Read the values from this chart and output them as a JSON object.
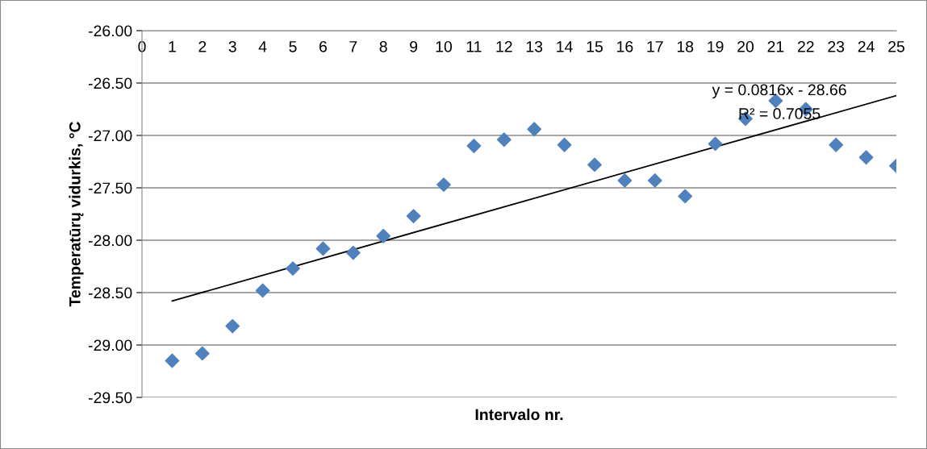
{
  "chart_data": {
    "type": "scatter",
    "xlabel": "Intervalo nr.",
    "ylabel": "Temperatūrų vidurkis, °C",
    "xlim": [
      0,
      25
    ],
    "xticks": [
      0,
      1,
      2,
      3,
      4,
      5,
      6,
      7,
      8,
      9,
      10,
      11,
      12,
      13,
      14,
      15,
      16,
      17,
      18,
      19,
      20,
      21,
      22,
      23,
      24,
      25
    ],
    "ylim": [
      -29.5,
      -26
    ],
    "yticks": [
      {
        "value": -29.5,
        "label": "-29.50"
      },
      {
        "value": -29,
        "label": "-29.00"
      },
      {
        "value": -28.5,
        "label": "-28.50"
      },
      {
        "value": -28,
        "label": "-28.00"
      },
      {
        "value": -27.5,
        "label": "-27.50"
      },
      {
        "value": -27,
        "label": "-27.00"
      },
      {
        "value": -26.5,
        "label": "-26.50"
      },
      {
        "value": -26,
        "label": "-26.00"
      }
    ],
    "grid": "y",
    "legend": false,
    "series": [
      {
        "color": "#4f81bd",
        "marker": "diamond",
        "x": [
          1,
          2,
          3,
          4,
          5,
          6,
          7,
          8,
          9,
          10,
          11,
          12,
          13,
          14,
          15,
          16,
          17,
          18,
          19,
          20,
          21,
          22,
          23,
          24,
          25
        ],
        "values": [
          -29.15,
          -29.08,
          -28.82,
          -28.48,
          -28.27,
          -28.08,
          -28.12,
          -27.96,
          -27.77,
          -27.47,
          -27.1,
          -27.04,
          -26.94,
          -27.09,
          -27.28,
          -27.43,
          -27.43,
          -27.58,
          -27.08,
          -26.84,
          -26.67,
          -26.75,
          -27.09,
          -27.21,
          -27.29
        ]
      },
      {
        "type": "line",
        "color": "#000000",
        "marker": "none",
        "line_style": "solid",
        "x": [
          1,
          25
        ],
        "values": [
          -28.58,
          -26.62
        ]
      }
    ],
    "annotations": [
      "y = 0.0816x - 28.66",
      "R² = 0.7055"
    ]
  }
}
